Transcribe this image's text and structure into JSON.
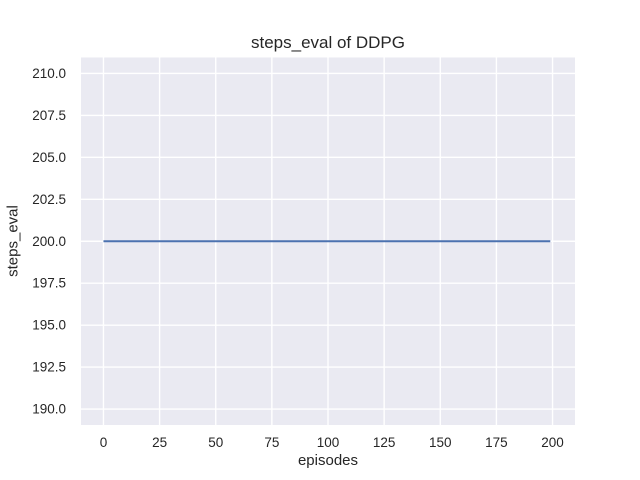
{
  "figure": {
    "kind": "matplotlib-seaborn-figure",
    "background_color": "#ffffff"
  },
  "chart_data": {
    "type": "line",
    "title": "steps_eval of DDPG",
    "xlabel": "episodes",
    "ylabel": "steps_eval",
    "series": [
      {
        "name": "steps_eval",
        "color": "#4c72b0",
        "line_width": 2,
        "x": [
          0,
          199
        ],
        "y": [
          200,
          200
        ],
        "description": "constant horizontal line: steps_eval equals 200 for every episode from 0 to 199"
      }
    ],
    "xlim": [
      -10,
      210
    ],
    "ylim": [
      189.05,
      210.95
    ],
    "x_ticks": [
      0,
      25,
      50,
      75,
      100,
      125,
      150,
      175,
      200
    ],
    "x_tick_labels": [
      "0",
      "25",
      "50",
      "75",
      "100",
      "125",
      "150",
      "175",
      "200"
    ],
    "y_ticks": [
      190.0,
      192.5,
      195.0,
      197.5,
      200.0,
      202.5,
      205.0,
      207.5,
      210.0
    ],
    "y_tick_labels": [
      "190.0",
      "192.5",
      "195.0",
      "197.5",
      "200.0",
      "202.5",
      "205.0",
      "207.5",
      "210.0"
    ],
    "grid": true,
    "legend": false,
    "style": {
      "plot_background": "#eaeaf2",
      "grid_color": "#ffffff",
      "grid_line_width": 1.4,
      "text_color": "#262626",
      "theme": "seaborn-darkgrid"
    }
  }
}
